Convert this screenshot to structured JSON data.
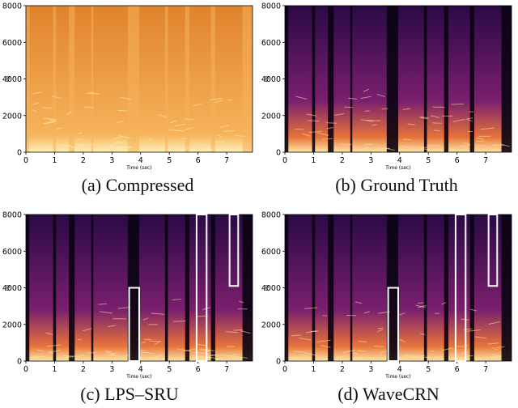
{
  "figure": {
    "panels": [
      {
        "id": "a",
        "caption": "(a)  Compressed",
        "theme": "compressed",
        "y_ticks": [
          "8000",
          "6000",
          "4000",
          "2000",
          "0"
        ],
        "x_ticks": [
          "0",
          "1",
          "2",
          "3",
          "4",
          "5",
          "6",
          "7"
        ],
        "xlabel": "Time (sec)",
        "ylabel": "Hz",
        "highlight_boxes": []
      },
      {
        "id": "b",
        "caption": "(b)  Ground Truth",
        "theme": "clean",
        "y_ticks": [
          "8000",
          "6000",
          "4000",
          "2000",
          "0"
        ],
        "x_ticks": [
          "0",
          "1",
          "2",
          "3",
          "4",
          "5",
          "6",
          "7"
        ],
        "xlabel": "Time (sec)",
        "ylabel": "Hz",
        "highlight_boxes": []
      },
      {
        "id": "c",
        "caption": "(c)  LPS–SRU",
        "theme": "clean",
        "y_ticks": [
          "8000",
          "6000",
          "4000",
          "2000",
          "0"
        ],
        "x_ticks": [
          "0",
          "1",
          "2",
          "3",
          "4",
          "5",
          "6",
          "7"
        ],
        "xlabel": "Time (sec)",
        "ylabel": "Hz",
        "highlight_boxes": [
          {
            "t0": 3.6,
            "t1": 3.95,
            "f0": 0,
            "f1": 4000
          },
          {
            "t0": 5.95,
            "t1": 6.3,
            "f0": 0,
            "f1": 8000
          },
          {
            "t0": 7.1,
            "t1": 7.4,
            "f0": 4100,
            "f1": 8000
          }
        ]
      },
      {
        "id": "d",
        "caption": "(d)  WaveCRN",
        "theme": "clean",
        "y_ticks": [
          "8000",
          "6000",
          "4000",
          "2000",
          "0"
        ],
        "x_ticks": [
          "0",
          "1",
          "2",
          "3",
          "4",
          "5",
          "6",
          "7"
        ],
        "xlabel": "Time (sec)",
        "ylabel": "Hz",
        "highlight_boxes": [
          {
            "t0": 3.6,
            "t1": 3.95,
            "f0": 0,
            "f1": 4000
          },
          {
            "t0": 5.95,
            "t1": 6.3,
            "f0": 0,
            "f1": 8000
          },
          {
            "t0": 7.1,
            "t1": 7.4,
            "f0": 4100,
            "f1": 8000
          }
        ]
      }
    ],
    "axis": {
      "t_max": 7.9,
      "f_max": 8000
    },
    "colors": {
      "clean_bg": "#2a0a45",
      "clean_mid": "#7a1f6e",
      "clean_hot": "#e8743b",
      "clean_peak": "#fde8a6",
      "compressed_bg": "#e0832c",
      "compressed_hot": "#f6b35a",
      "compressed_peak": "#fff1b8",
      "silence": "#0a0312",
      "box": "#ffffff"
    }
  }
}
